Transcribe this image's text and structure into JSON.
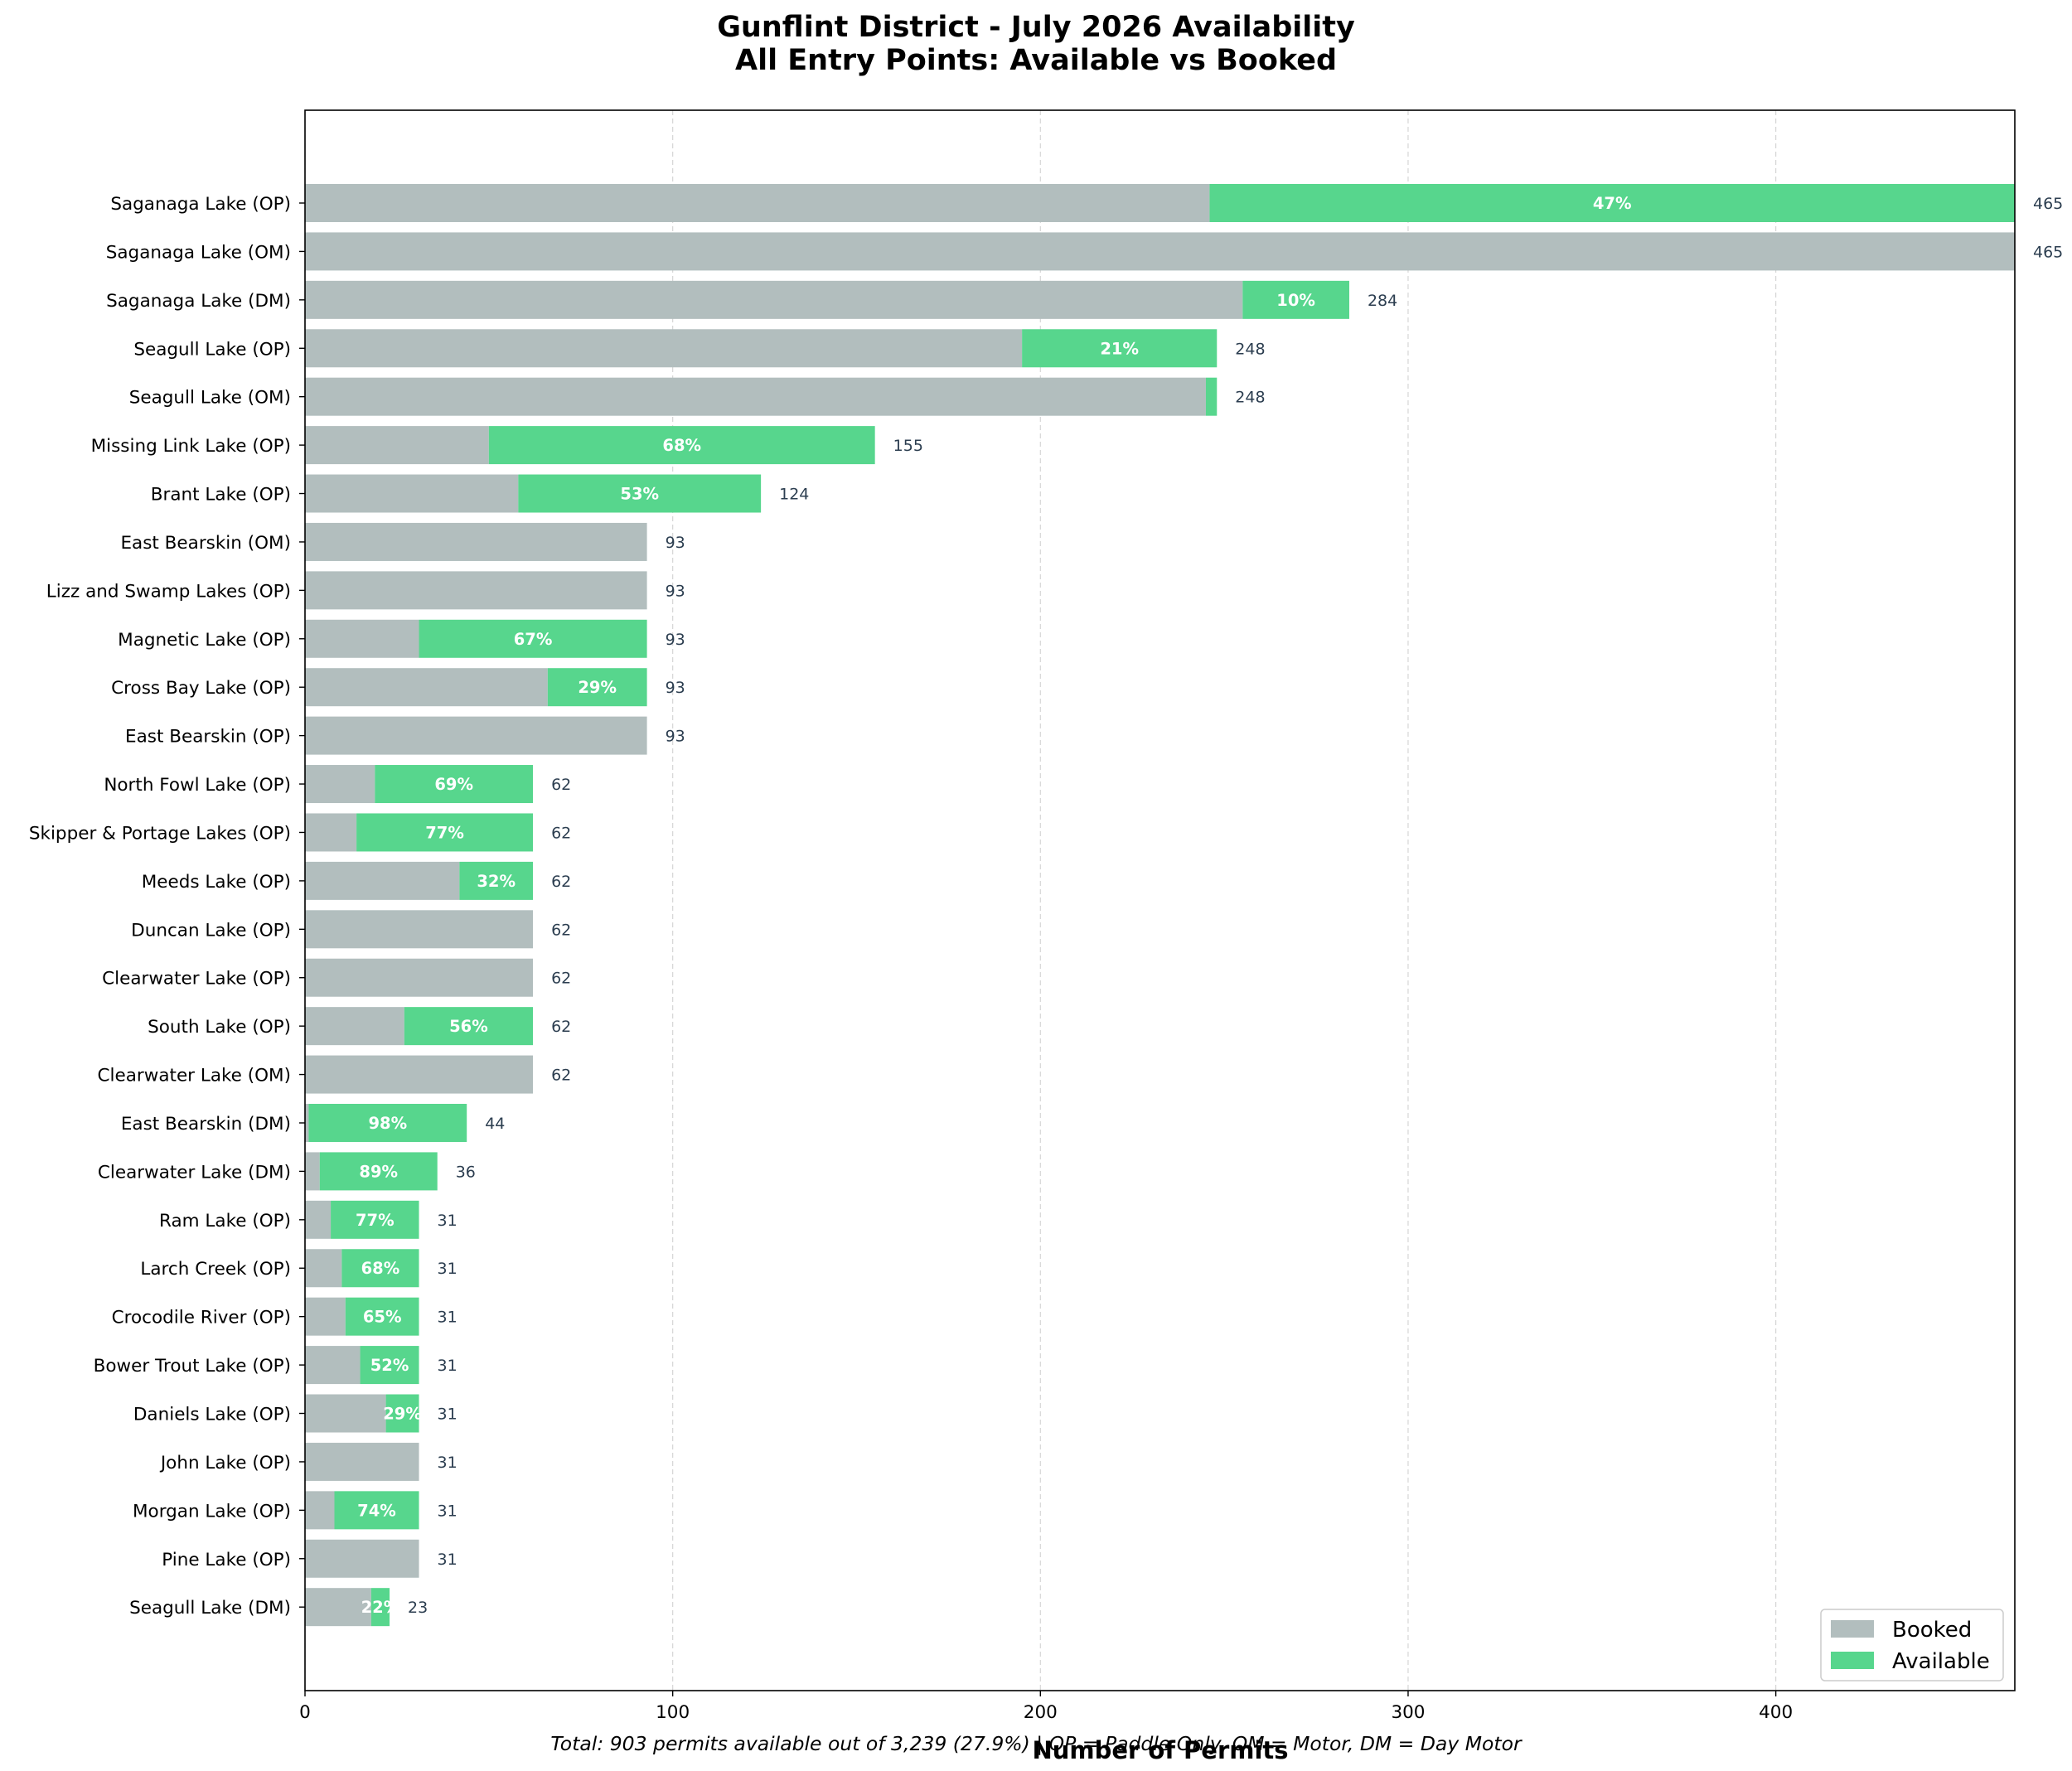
{
  "chart_data": {
    "type": "bar",
    "orientation": "horizontal",
    "stacked": true,
    "title": [
      "Gunflint District - July 2026 Availability",
      "All Entry Points: Available vs Booked"
    ],
    "xlabel": "Number of Permits",
    "ylabel": "",
    "xlim": [
      0,
      465
    ],
    "xticks": [
      0,
      100,
      200,
      300,
      400
    ],
    "grid": "vertical dashed",
    "legend": {
      "placement": "lower-right",
      "entries": [
        "Booked",
        "Available"
      ]
    },
    "colors": {
      "Booked": "#b2bebe",
      "Available": "#57d68d"
    },
    "footnote": "Total: 903 permits available out of 3,239 (27.9%) | OP = Paddle Only, OM = Motor, DM = Day Motor",
    "categories": [
      "Saganaga Lake (OP)",
      "Saganaga Lake (OM)",
      "Saganaga Lake (DM)",
      "Seagull Lake (OP)",
      "Seagull Lake (OM)",
      "Missing Link Lake (OP)",
      "Brant Lake (OP)",
      "East Bearskin (OM)",
      "Lizz and Swamp Lakes (OP)",
      "Magnetic Lake (OP)",
      "Cross Bay Lake (OP)",
      "East Bearskin (OP)",
      "North Fowl Lake (OP)",
      "Skipper & Portage Lakes (OP)",
      "Meeds Lake (OP)",
      "Duncan Lake (OP)",
      "Clearwater Lake (OP)",
      "South Lake (OP)",
      "Clearwater Lake (OM)",
      "East Bearskin (DM)",
      "Clearwater Lake (DM)",
      "Ram Lake (OP)",
      "Larch Creek (OP)",
      "Crocodile River (OP)",
      "Bower Trout Lake (OP)",
      "Daniels Lake (OP)",
      "John Lake (OP)",
      "Morgan Lake (OP)",
      "Pine Lake (OP)",
      "Seagull Lake (DM)"
    ],
    "series": [
      {
        "name": "Booked",
        "values": [
          246,
          465,
          255,
          195,
          245,
          50,
          58,
          93,
          93,
          31,
          66,
          93,
          19,
          14,
          42,
          62,
          62,
          27,
          62,
          1,
          4,
          7,
          10,
          11,
          15,
          22,
          31,
          8,
          31,
          18
        ]
      },
      {
        "name": "Available",
        "values": [
          219,
          0,
          29,
          53,
          3,
          105,
          66,
          0,
          0,
          62,
          27,
          0,
          43,
          48,
          20,
          0,
          0,
          35,
          0,
          43,
          32,
          24,
          21,
          20,
          16,
          9,
          0,
          23,
          0,
          5
        ]
      }
    ],
    "totals": [
      "465",
      "465",
      "284",
      "248",
      "248",
      "155",
      "124",
      "93",
      "93",
      "93",
      "93",
      "93",
      "62",
      "62",
      "62",
      "62",
      "62",
      "62",
      "62",
      "44",
      "36",
      "31",
      "31",
      "31",
      "31",
      "31",
      "31",
      "31",
      "31",
      "23"
    ],
    "pct_labels": [
      "47%",
      "",
      "10%",
      "21%",
      "",
      "68%",
      "53%",
      "",
      "",
      "67%",
      "29%",
      "",
      "69%",
      "77%",
      "32%",
      "",
      "",
      "56%",
      "",
      "98%",
      "89%",
      "77%",
      "68%",
      "65%",
      "52%",
      "29%",
      "",
      "74%",
      "",
      "22%"
    ]
  }
}
